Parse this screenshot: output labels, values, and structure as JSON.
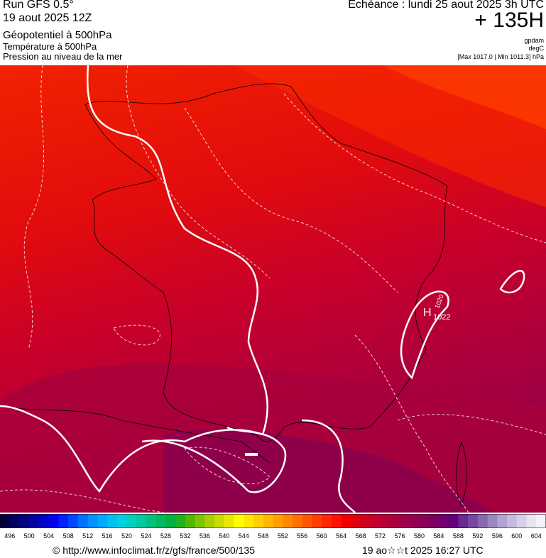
{
  "header": {
    "model": "Run GFS 0.5°",
    "run": "19 aout 2025 12Z",
    "field": "Géopotentiel à 500hPa",
    "layer2": "Température à 500hPa",
    "layer3": "Pression au niveau de la mer",
    "valid": "Echéance : lundi 25 aout 2025 3h UTC",
    "lead": "+ 135H",
    "unit1": "gpdam",
    "unit2": "degC",
    "range": "[Max 1017.0 | Min 1011.3] hPa"
  },
  "map": {
    "high": "H",
    "isobar1": "1020",
    "isobar2": "1022"
  },
  "colorbar": {
    "colors": [
      "#000040",
      "#000060",
      "#000080",
      "#0000a0",
      "#0000c8",
      "#0000ee",
      "#0020ff",
      "#0048ff",
      "#0070ff",
      "#0090ff",
      "#00a8ff",
      "#00c0f0",
      "#00d0e0",
      "#00d0c0",
      "#00c8a0",
      "#00c080",
      "#00b860",
      "#00b040",
      "#20b020",
      "#50b800",
      "#80c400",
      "#a8d000",
      "#ccdc00",
      "#e8e800",
      "#ffff00",
      "#ffe800",
      "#ffd000",
      "#ffb800",
      "#ffa000",
      "#ff8800",
      "#ff7000",
      "#ff5800",
      "#ff4000",
      "#ff2800",
      "#ff1000",
      "#f00000",
      "#e00010",
      "#d00020",
      "#c40030",
      "#b80038",
      "#ac0040",
      "#a00048",
      "#940050",
      "#880058",
      "#7c0060",
      "#700070",
      "#640080",
      "#6a2890",
      "#7848a0",
      "#8868b0",
      "#9a88c0",
      "#b0a4d0",
      "#c4bcdc",
      "#d8d0e8",
      "#e8e4f0",
      "#f4f2f8"
    ],
    "ticks": [
      496,
      500,
      504,
      508,
      512,
      516,
      520,
      524,
      528,
      532,
      536,
      540,
      544,
      548,
      552,
      556,
      560,
      564,
      568,
      572,
      576,
      580,
      584,
      588,
      592,
      596,
      600,
      604
    ]
  },
  "footer": {
    "url": "© http://www.infoclimat.fr/z/gfs/france/500/135",
    "time": "19 ao☆☆t 2025 16:27 UTC"
  }
}
